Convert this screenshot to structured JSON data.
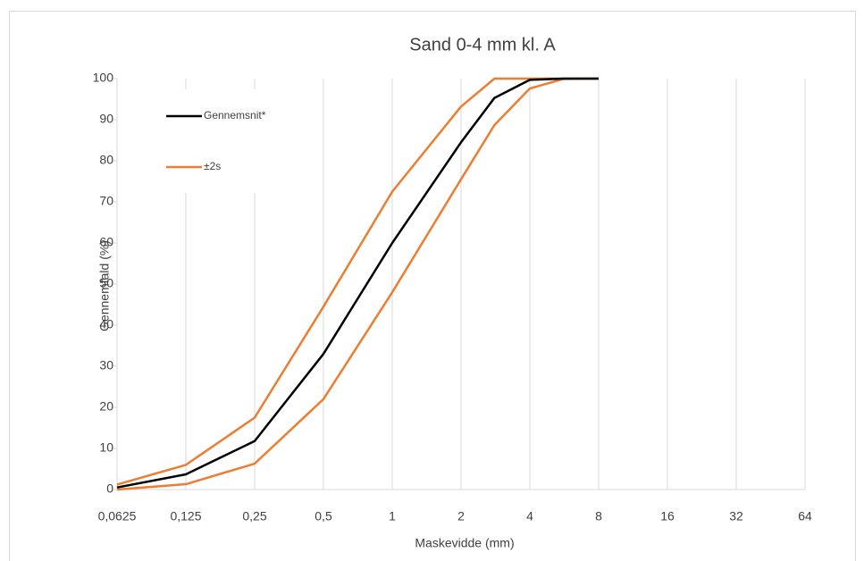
{
  "chart_data": {
    "type": "line",
    "title": "Sand 0-4 mm  kl. A",
    "xlabel": "Maskevidde (mm)",
    "ylabel": "Gennemfald (%)",
    "xscale": "log",
    "x": [
      0.0625,
      0.125,
      0.25,
      0.5,
      1,
      2,
      2.8,
      4,
      5.6,
      8
    ],
    "series": [
      {
        "name": "Gennemsnit*",
        "color": "#000000",
        "values": [
          0.5,
          3.7,
          11.8,
          33,
          60,
          84.5,
          95.3,
          99.7,
          100,
          100
        ]
      },
      {
        "name": "±2s",
        "color": "#ed7d31",
        "values": [
          1.2,
          6,
          17.5,
          44.5,
          72.5,
          93.2,
          100,
          100,
          100,
          100
        ]
      },
      {
        "color": "#ed7d31",
        "values": [
          0,
          1.3,
          6.3,
          22,
          48,
          75.5,
          88.7,
          97.6,
          99.9,
          100
        ]
      }
    ],
    "xlim": [
      0.0625,
      64
    ],
    "xticks": [
      {
        "value": 0.0625,
        "label": "0,0625"
      },
      {
        "value": 0.125,
        "label": "0,125"
      },
      {
        "value": 0.25,
        "label": "0,25"
      },
      {
        "value": 0.5,
        "label": "0,5"
      },
      1,
      2,
      4,
      8,
      16,
      32,
      64
    ],
    "ylim": [
      0,
      100
    ],
    "yticks": [
      0,
      10,
      20,
      30,
      40,
      50,
      60,
      70,
      80,
      90,
      100
    ],
    "grid": "x",
    "legend": "upper left"
  }
}
